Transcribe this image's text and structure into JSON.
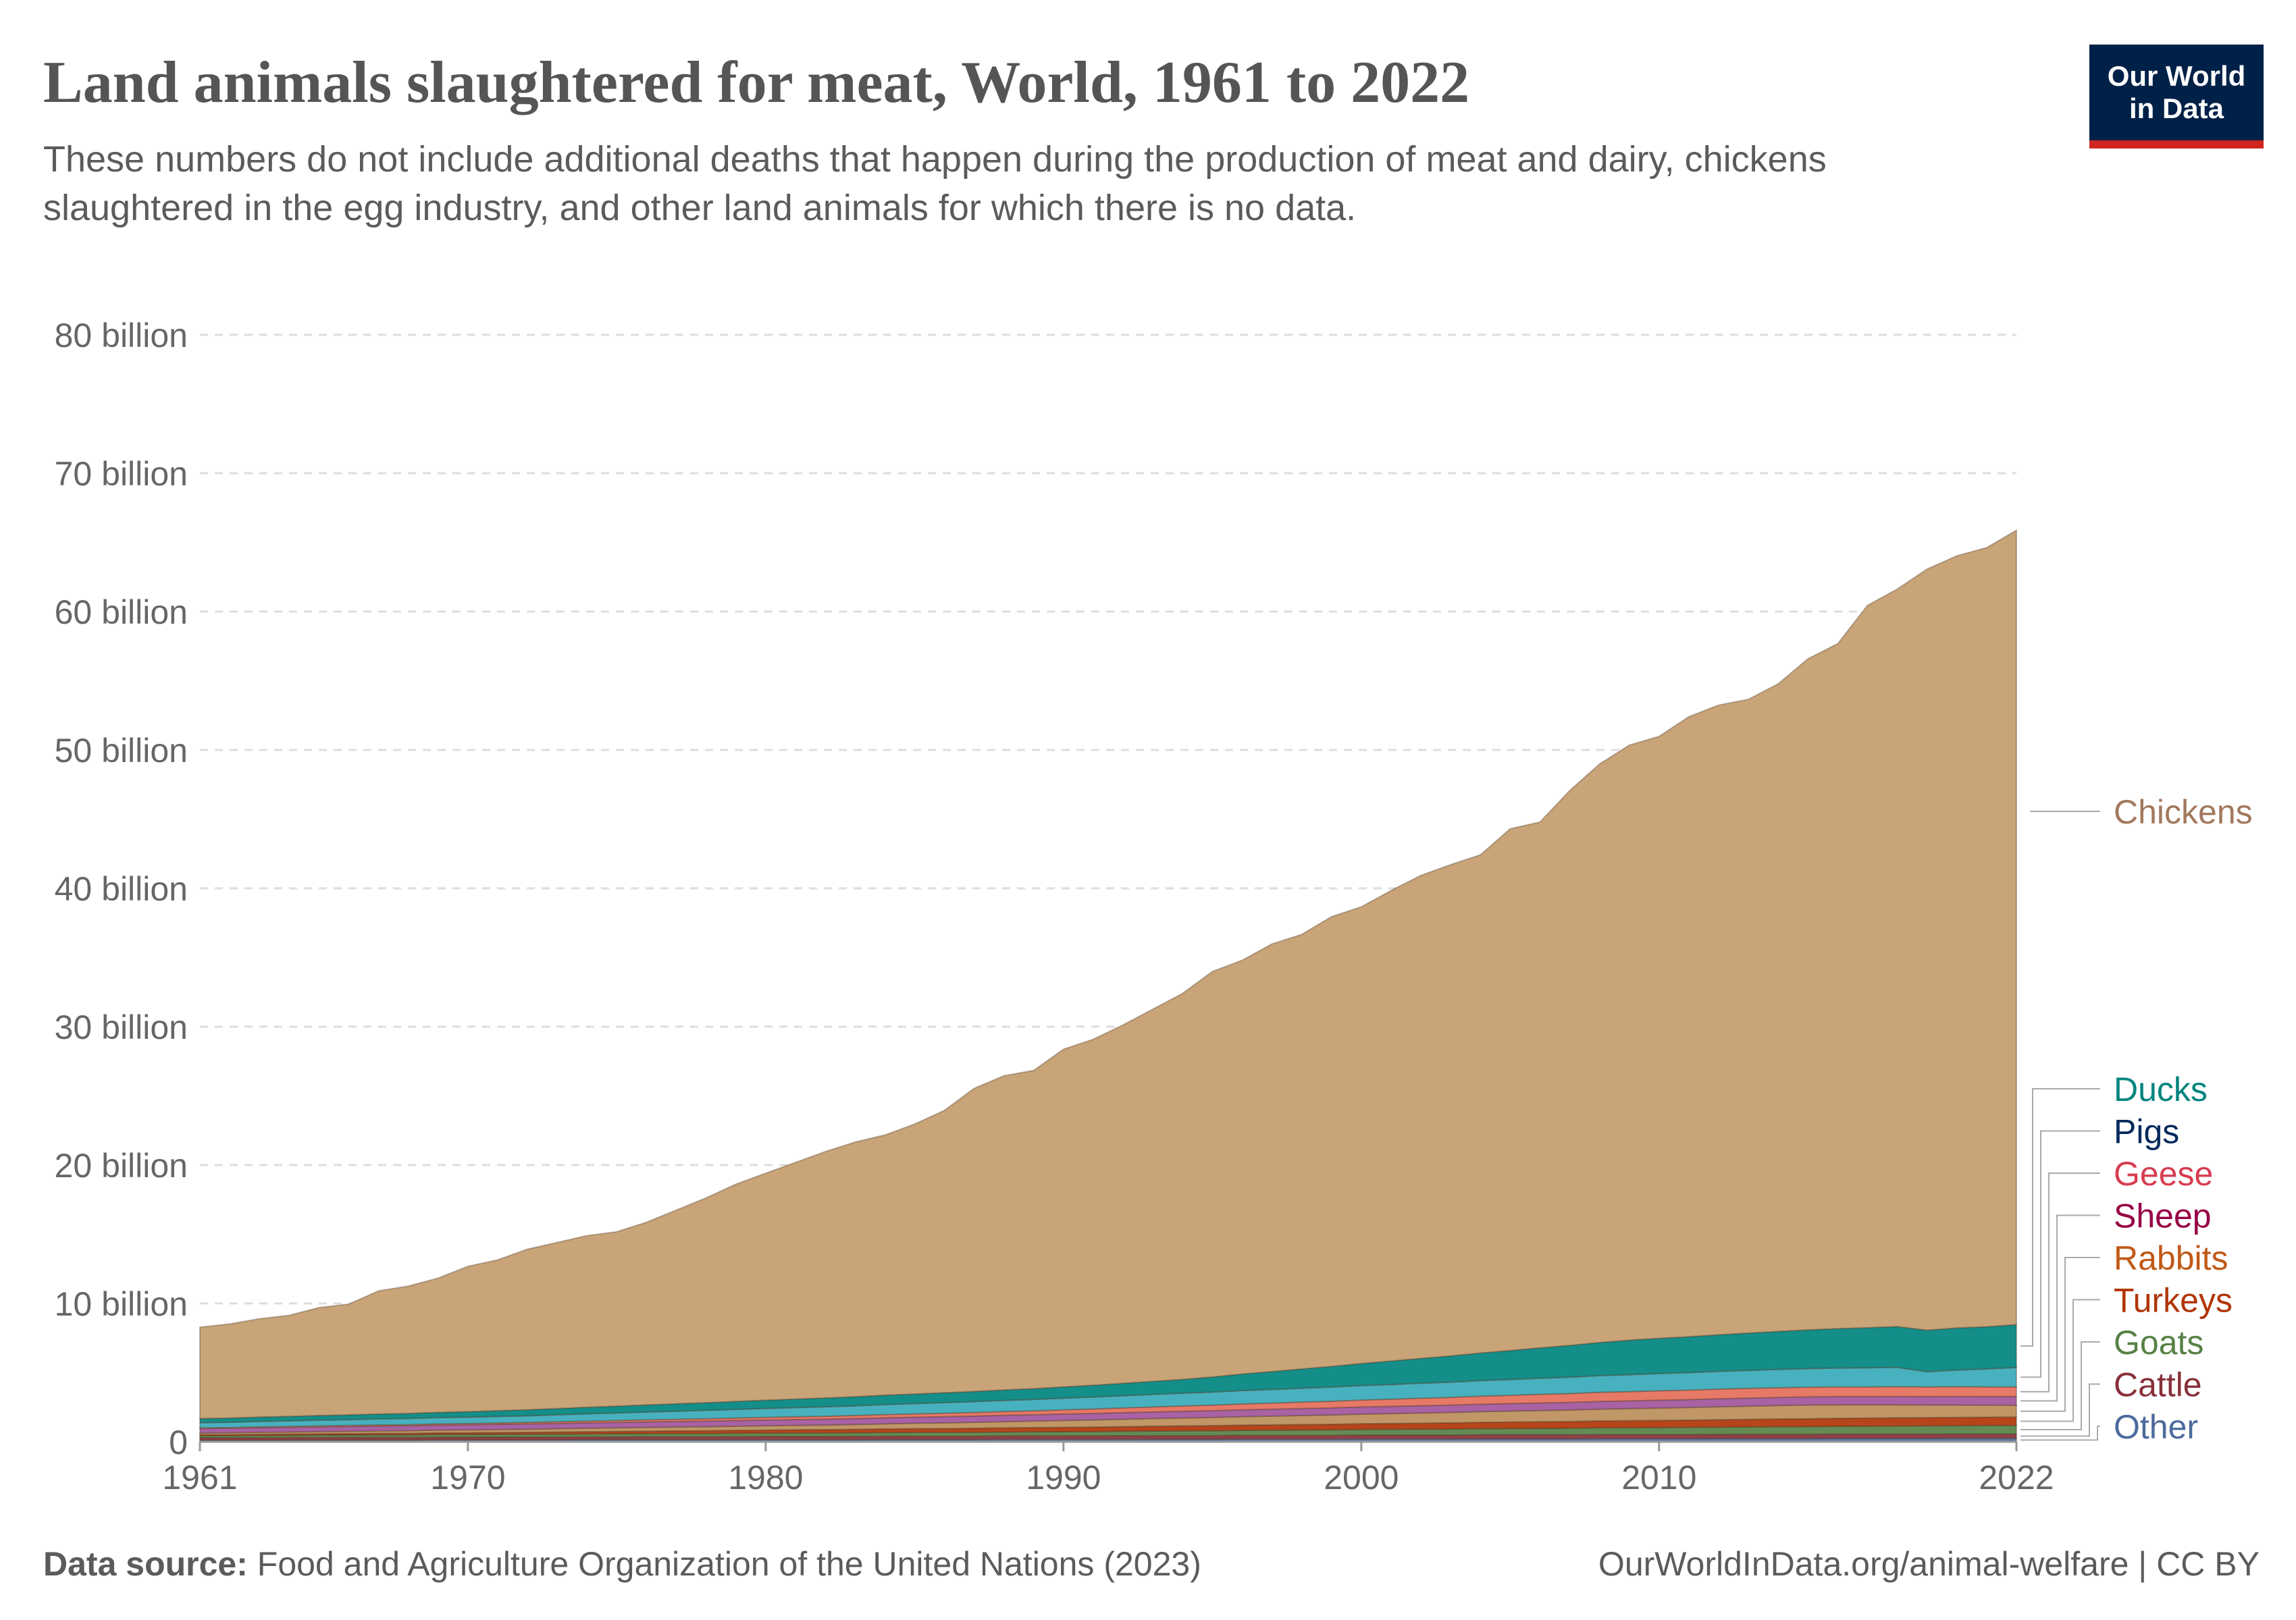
{
  "header": {
    "title": "Land animals slaughtered for meat, World, 1961 to 2022",
    "subtitle": "These numbers do not include additional deaths that happen during the production of meat and dairy, chickens slaughtered in the egg industry, and other land animals for which there is no data.",
    "logo_line1": "Our World",
    "logo_line2": "in Data"
  },
  "footer": {
    "source_label": "Data source:",
    "source_text": "Food and Agriculture Organization of the United Nations (2023)",
    "url": "OurWorldInData.org/animal-welfare | CC BY"
  },
  "chart_data": {
    "type": "area",
    "stacked": true,
    "x": [
      1961,
      1962,
      1963,
      1964,
      1965,
      1966,
      1967,
      1968,
      1969,
      1970,
      1971,
      1972,
      1973,
      1974,
      1975,
      1976,
      1977,
      1978,
      1979,
      1980,
      1981,
      1982,
      1983,
      1984,
      1985,
      1986,
      1987,
      1988,
      1989,
      1990,
      1991,
      1992,
      1993,
      1994,
      1995,
      1996,
      1997,
      1998,
      1999,
      2000,
      2001,
      2002,
      2003,
      2004,
      2005,
      2006,
      2007,
      2008,
      2009,
      2010,
      2011,
      2012,
      2013,
      2014,
      2015,
      2016,
      2017,
      2018,
      2019,
      2020,
      2021,
      2022
    ],
    "xlim": [
      1961,
      2022
    ],
    "ylim": [
      0,
      80000000000
    ],
    "x_ticks": [
      {
        "value": 1961,
        "label": "1961"
      },
      {
        "value": 1970,
        "label": "1970"
      },
      {
        "value": 1980,
        "label": "1980"
      },
      {
        "value": 1990,
        "label": "1990"
      },
      {
        "value": 2000,
        "label": "2000"
      },
      {
        "value": 2010,
        "label": "2010"
      },
      {
        "value": 2022,
        "label": "2022"
      }
    ],
    "y_ticks": [
      {
        "value": 0,
        "label": "0"
      },
      {
        "value": 10000000000,
        "label": "10 billion"
      },
      {
        "value": 20000000000,
        "label": "20 billion"
      },
      {
        "value": 30000000000,
        "label": "30 billion"
      },
      {
        "value": 40000000000,
        "label": "40 billion"
      },
      {
        "value": 50000000000,
        "label": "50 billion"
      },
      {
        "value": 60000000000,
        "label": "60 billion"
      },
      {
        "value": 70000000000,
        "label": "70 billion"
      },
      {
        "value": 80000000000,
        "label": "80 billion"
      }
    ],
    "grid": "horizontal dashed",
    "legend": "right, labels at series ends",
    "series_order_bottom_to_top": [
      "Other",
      "Cattle",
      "Goats",
      "Turkeys",
      "Rabbits",
      "Sheep",
      "Geese",
      "Pigs",
      "Ducks",
      "Chickens"
    ],
    "series": [
      {
        "name": "Other",
        "color": "#4c6a9c",
        "label_color": "#4c6a9c",
        "values": [
          0.12,
          0.12,
          0.12,
          0.13,
          0.13,
          0.13,
          0.13,
          0.13,
          0.14,
          0.14,
          0.14,
          0.14,
          0.14,
          0.15,
          0.15,
          0.15,
          0.15,
          0.15,
          0.16,
          0.16,
          0.16,
          0.16,
          0.16,
          0.17,
          0.17,
          0.17,
          0.17,
          0.18,
          0.18,
          0.18,
          0.18,
          0.18,
          0.19,
          0.19,
          0.19,
          0.2,
          0.2,
          0.2,
          0.2,
          0.21,
          0.21,
          0.21,
          0.21,
          0.22,
          0.22,
          0.22,
          0.22,
          0.23,
          0.23,
          0.23,
          0.23,
          0.24,
          0.24,
          0.24,
          0.24,
          0.25,
          0.25,
          0.25,
          0.25,
          0.26,
          0.26,
          0.26
        ]
      },
      {
        "name": "Cattle",
        "color": "#883039",
        "label_color": "#883039",
        "values": [
          0.17,
          0.17,
          0.18,
          0.18,
          0.18,
          0.19,
          0.19,
          0.19,
          0.2,
          0.2,
          0.2,
          0.2,
          0.21,
          0.21,
          0.21,
          0.22,
          0.22,
          0.22,
          0.22,
          0.23,
          0.23,
          0.23,
          0.23,
          0.24,
          0.24,
          0.24,
          0.24,
          0.25,
          0.25,
          0.25,
          0.25,
          0.26,
          0.26,
          0.26,
          0.26,
          0.27,
          0.27,
          0.27,
          0.27,
          0.28,
          0.28,
          0.28,
          0.28,
          0.29,
          0.29,
          0.29,
          0.29,
          0.3,
          0.3,
          0.3,
          0.3,
          0.3,
          0.31,
          0.31,
          0.31,
          0.31,
          0.31,
          0.31,
          0.31,
          0.31,
          0.31,
          0.31
        ]
      },
      {
        "name": "Goats",
        "color": "#578145",
        "label_color": "#578145",
        "values": [
          0.15,
          0.15,
          0.16,
          0.16,
          0.17,
          0.17,
          0.18,
          0.18,
          0.19,
          0.19,
          0.2,
          0.2,
          0.21,
          0.21,
          0.22,
          0.22,
          0.23,
          0.23,
          0.24,
          0.24,
          0.25,
          0.25,
          0.26,
          0.26,
          0.27,
          0.27,
          0.28,
          0.28,
          0.29,
          0.3,
          0.31,
          0.32,
          0.33,
          0.34,
          0.35,
          0.36,
          0.37,
          0.38,
          0.39,
          0.4,
          0.41,
          0.42,
          0.43,
          0.44,
          0.45,
          0.46,
          0.47,
          0.48,
          0.49,
          0.5,
          0.51,
          0.52,
          0.53,
          0.54,
          0.55,
          0.56,
          0.57,
          0.58,
          0.59,
          0.6,
          0.61,
          0.62
        ]
      },
      {
        "name": "Turkeys",
        "color": "#b13507",
        "label_color": "#b13507",
        "values": [
          0.08,
          0.08,
          0.09,
          0.09,
          0.1,
          0.1,
          0.11,
          0.11,
          0.12,
          0.12,
          0.13,
          0.14,
          0.15,
          0.16,
          0.17,
          0.18,
          0.19,
          0.2,
          0.21,
          0.22,
          0.23,
          0.24,
          0.25,
          0.26,
          0.27,
          0.28,
          0.29,
          0.3,
          0.31,
          0.32,
          0.33,
          0.34,
          0.35,
          0.36,
          0.37,
          0.38,
          0.39,
          0.4,
          0.41,
          0.42,
          0.43,
          0.44,
          0.45,
          0.46,
          0.47,
          0.48,
          0.49,
          0.5,
          0.51,
          0.52,
          0.53,
          0.54,
          0.55,
          0.56,
          0.57,
          0.58,
          0.59,
          0.6,
          0.6,
          0.6,
          0.6,
          0.6
        ]
      },
      {
        "name": "Rabbits",
        "color": "#bc8e5a",
        "label_color": "#c05917",
        "values": [
          0.12,
          0.13,
          0.14,
          0.15,
          0.16,
          0.17,
          0.18,
          0.19,
          0.2,
          0.21,
          0.22,
          0.23,
          0.24,
          0.25,
          0.26,
          0.27,
          0.28,
          0.29,
          0.3,
          0.31,
          0.32,
          0.33,
          0.35,
          0.37,
          0.39,
          0.41,
          0.43,
          0.45,
          0.47,
          0.49,
          0.51,
          0.53,
          0.55,
          0.57,
          0.59,
          0.61,
          0.63,
          0.65,
          0.67,
          0.69,
          0.71,
          0.73,
          0.75,
          0.77,
          0.79,
          0.81,
          0.83,
          0.85,
          0.87,
          0.89,
          0.91,
          0.93,
          0.95,
          0.97,
          0.99,
          0.97,
          0.95,
          0.93,
          0.91,
          0.89,
          0.87,
          0.85
        ]
      },
      {
        "name": "Sheep",
        "color": "#a2559c",
        "label_color": "#970046",
        "values": [
          0.32,
          0.33,
          0.33,
          0.34,
          0.34,
          0.35,
          0.35,
          0.36,
          0.36,
          0.37,
          0.37,
          0.38,
          0.38,
          0.39,
          0.39,
          0.4,
          0.4,
          0.41,
          0.41,
          0.42,
          0.42,
          0.43,
          0.43,
          0.44,
          0.44,
          0.45,
          0.45,
          0.46,
          0.46,
          0.47,
          0.47,
          0.48,
          0.48,
          0.49,
          0.49,
          0.5,
          0.5,
          0.51,
          0.51,
          0.52,
          0.52,
          0.53,
          0.53,
          0.54,
          0.54,
          0.55,
          0.55,
          0.56,
          0.56,
          0.57,
          0.57,
          0.58,
          0.58,
          0.59,
          0.59,
          0.6,
          0.6,
          0.61,
          0.61,
          0.62,
          0.62,
          0.63
        ]
      },
      {
        "name": "Geese",
        "color": "#e56e5a",
        "label_color": "#d73c50",
        "values": [
          0.05,
          0.05,
          0.06,
          0.06,
          0.07,
          0.07,
          0.08,
          0.08,
          0.09,
          0.09,
          0.1,
          0.11,
          0.12,
          0.13,
          0.14,
          0.15,
          0.16,
          0.17,
          0.18,
          0.19,
          0.2,
          0.21,
          0.22,
          0.23,
          0.24,
          0.25,
          0.26,
          0.27,
          0.28,
          0.3,
          0.32,
          0.34,
          0.36,
          0.38,
          0.4,
          0.42,
          0.44,
          0.46,
          0.48,
          0.5,
          0.52,
          0.54,
          0.56,
          0.58,
          0.6,
          0.62,
          0.64,
          0.66,
          0.67,
          0.68,
          0.69,
          0.7,
          0.7,
          0.7,
          0.7,
          0.7,
          0.7,
          0.7,
          0.7,
          0.7,
          0.7,
          0.7
        ]
      },
      {
        "name": "Pigs",
        "color": "#38aaba",
        "label_color": "#00295b",
        "values": [
          0.37,
          0.38,
          0.39,
          0.4,
          0.41,
          0.42,
          0.43,
          0.44,
          0.45,
          0.46,
          0.47,
          0.48,
          0.5,
          0.52,
          0.54,
          0.56,
          0.58,
          0.6,
          0.62,
          0.64,
          0.66,
          0.68,
          0.7,
          0.72,
          0.74,
          0.76,
          0.78,
          0.8,
          0.82,
          0.84,
          0.86,
          0.88,
          0.9,
          0.92,
          0.94,
          0.96,
          0.98,
          1.0,
          1.02,
          1.04,
          1.06,
          1.08,
          1.1,
          1.12,
          1.14,
          1.16,
          1.18,
          1.2,
          1.22,
          1.24,
          1.26,
          1.28,
          1.3,
          1.32,
          1.34,
          1.36,
          1.38,
          1.4,
          1.1,
          1.2,
          1.3,
          1.4
        ]
      },
      {
        "name": "Ducks",
        "color": "#00847e",
        "label_color": "#00847e",
        "values": [
          0.3,
          0.31,
          0.32,
          0.33,
          0.34,
          0.35,
          0.36,
          0.37,
          0.38,
          0.4,
          0.42,
          0.44,
          0.46,
          0.48,
          0.5,
          0.52,
          0.54,
          0.56,
          0.58,
          0.6,
          0.62,
          0.64,
          0.66,
          0.68,
          0.7,
          0.72,
          0.74,
          0.76,
          0.78,
          0.82,
          0.86,
          0.9,
          0.95,
          1.0,
          1.1,
          1.2,
          1.3,
          1.4,
          1.5,
          1.6,
          1.7,
          1.8,
          1.9,
          2.0,
          2.1,
          2.2,
          2.3,
          2.4,
          2.5,
          2.55,
          2.6,
          2.65,
          2.7,
          2.75,
          2.8,
          2.85,
          2.9,
          2.95,
          3.0,
          3.05,
          3.05,
          3.1
        ]
      },
      {
        "name": "Chickens",
        "color": "#c8a478",
        "label_color": "#a2785d",
        "values": [
          6.6,
          6.8,
          7.1,
          7.3,
          7.8,
          8.0,
          8.9,
          9.2,
          9.7,
          10.5,
          10.9,
          11.6,
          12.0,
          12.4,
          12.6,
          13.2,
          14.0,
          14.8,
          15.7,
          16.4,
          17.1,
          17.8,
          18.4,
          18.8,
          19.5,
          20.4,
          21.9,
          22.7,
          23.0,
          24.4,
          25.0,
          25.9,
          26.9,
          27.9,
          29.3,
          29.9,
          30.9,
          31.4,
          32.5,
          33.0,
          34.0,
          34.9,
          35.5,
          36.0,
          37.7,
          38.0,
          40.1,
          41.8,
          43.0,
          43.5,
          44.8,
          45.5,
          45.8,
          46.8,
          48.5,
          49.5,
          52.2,
          53.3,
          55.0,
          55.8,
          56.3,
          57.4
        ]
      }
    ],
    "value_unit": "billion"
  }
}
